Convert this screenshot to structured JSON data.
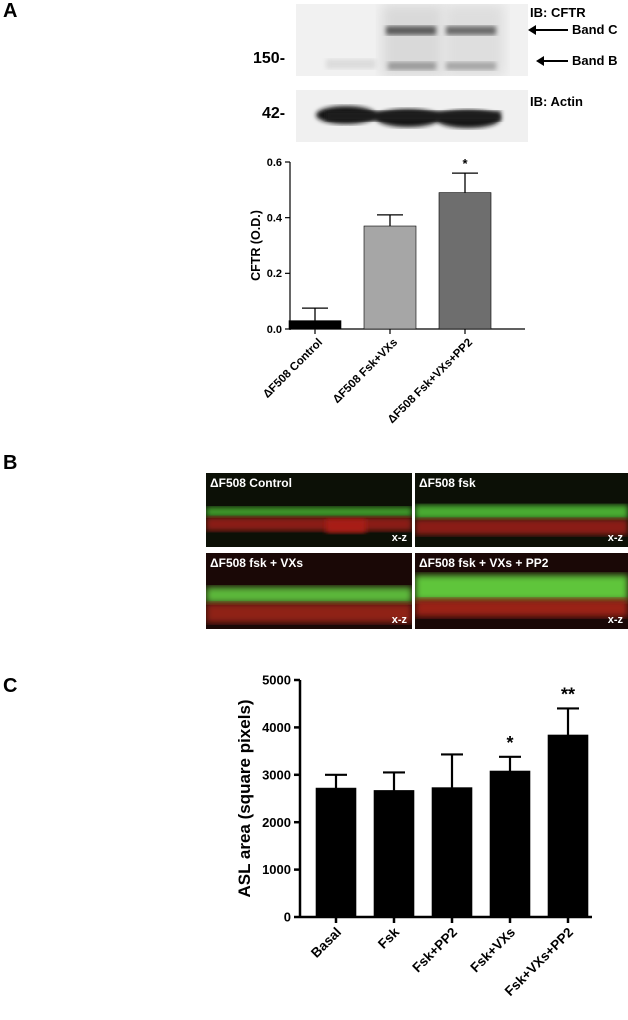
{
  "panel_a": {
    "letter": "A",
    "blot_cftr_label": "IB: CFTR",
    "band_c_label": "Band C",
    "band_b_label": "Band B",
    "mw_150": "150-",
    "blot_actin_label": "IB: Actin",
    "mw_42": "42-"
  },
  "panel_b": {
    "letter": "B",
    "images": [
      {
        "title": "ΔF508 Control",
        "axis": "x-z"
      },
      {
        "title": "ΔF508  fsk",
        "axis": "x-z"
      },
      {
        "title": "ΔF508  fsk + VXs",
        "axis": "x-z"
      },
      {
        "title": "ΔF508 fsk + VXs + PP2",
        "axis": "x-z"
      }
    ]
  },
  "panel_c": {
    "letter": "C"
  },
  "chart_data": [
    {
      "type": "bar",
      "panel": "A",
      "categories": [
        "ΔF508 Control",
        "ΔF508 Fsk+VXs",
        "ΔF508 Fsk+VXs+PP2"
      ],
      "values": [
        0.03,
        0.37,
        0.49
      ],
      "errors": [
        0.045,
        0.04,
        0.07
      ],
      "annotations": [
        "",
        "",
        "*"
      ],
      "colors": [
        "#000000",
        "#a6a6a6",
        "#6e6e6e"
      ],
      "xlabel": "",
      "ylabel": "CFTR (O.D.)",
      "ylim": [
        0,
        0.6
      ],
      "yticks": [
        "0.0",
        "0.2",
        "0.4",
        "0.6"
      ]
    },
    {
      "type": "bar",
      "panel": "C",
      "categories": [
        "Basal",
        "Fsk",
        "Fsk+PP2",
        "Fsk+VXs",
        "Fsk+VXs+PP2"
      ],
      "values": [
        2720,
        2670,
        2730,
        3080,
        3840
      ],
      "errors": [
        280,
        380,
        700,
        300,
        560
      ],
      "annotations": [
        "",
        "",
        "",
        "*",
        "**"
      ],
      "colors": [
        "#000000",
        "#000000",
        "#000000",
        "#000000",
        "#000000"
      ],
      "xlabel": "",
      "ylabel": "ASL area (square pixels)",
      "ylim": [
        0,
        5000
      ],
      "yticks": [
        "0",
        "1000",
        "2000",
        "3000",
        "4000",
        "5000"
      ]
    }
  ]
}
